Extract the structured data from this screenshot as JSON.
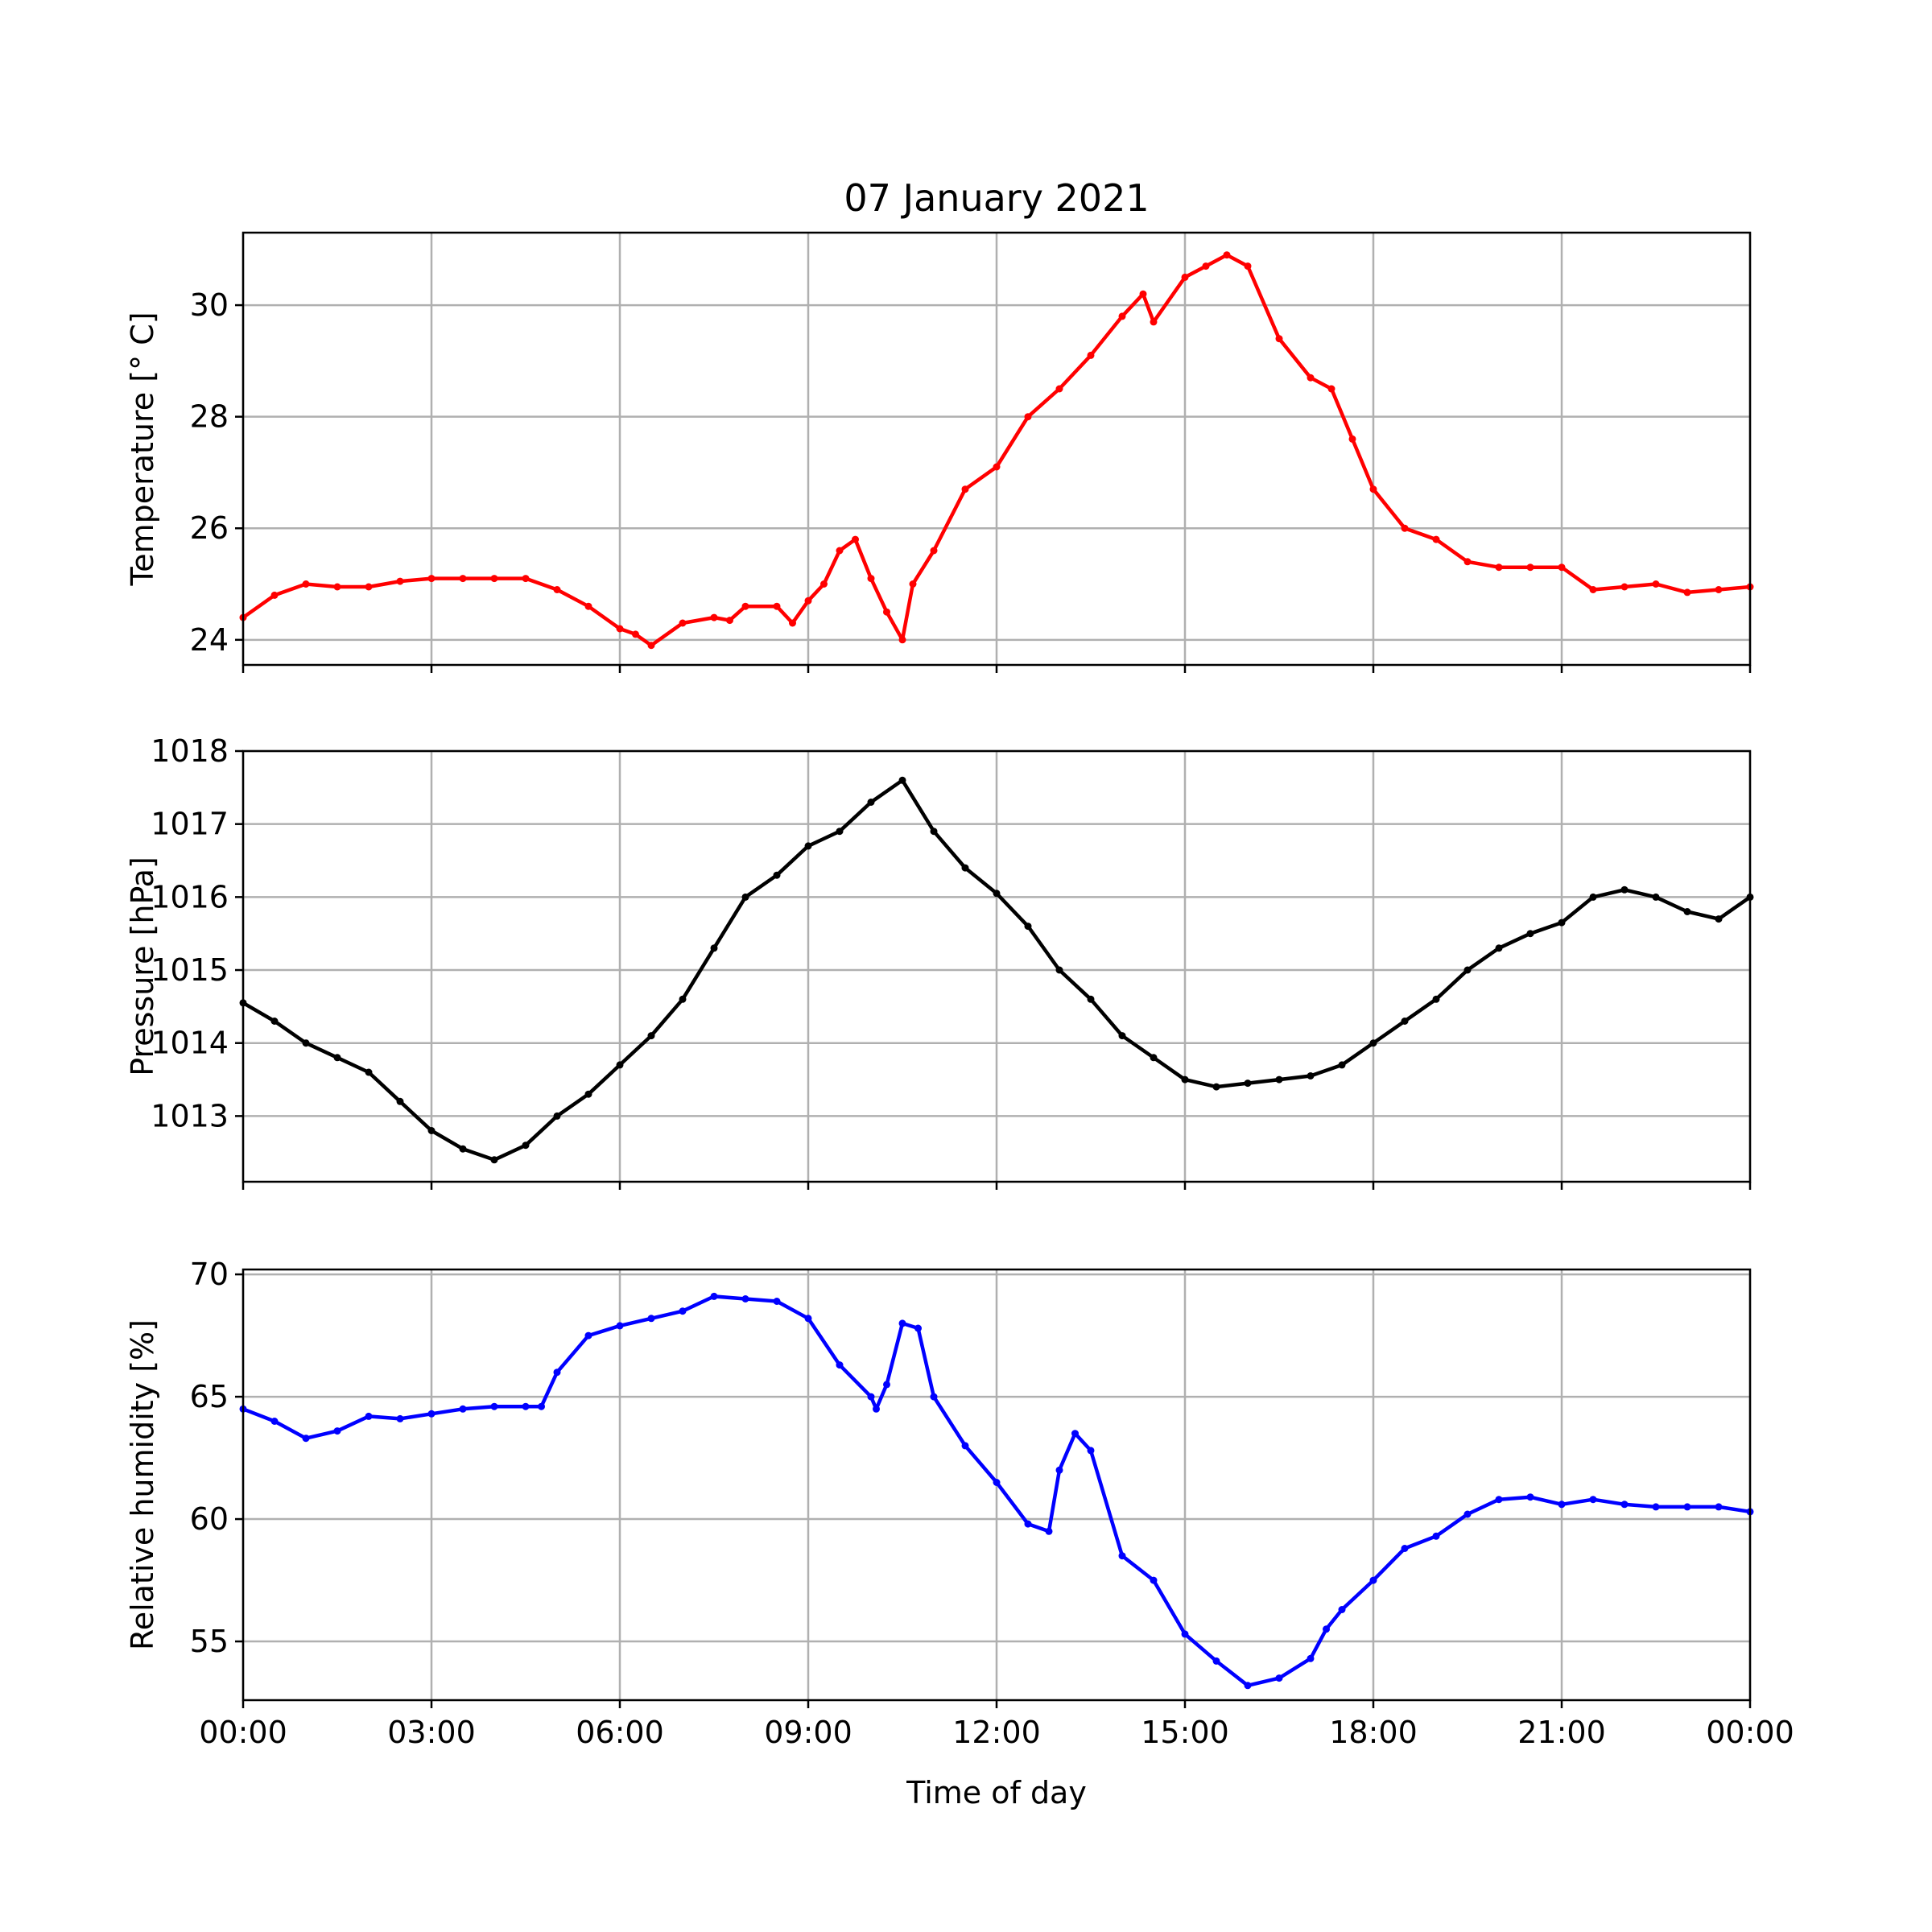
{
  "figure": {
    "title": "07 January 2021",
    "xlabel": "Time of day"
  },
  "chart_data": [
    {
      "type": "scatter",
      "ylabel": "Temperature [° C]",
      "color": "#ff0000",
      "xlim": [
        "00:00",
        "24:00"
      ],
      "x_ticks": [
        "00:00",
        "03:00",
        "06:00",
        "09:00",
        "12:00",
        "15:00",
        "18:00",
        "21:00",
        "00:00"
      ],
      "ylim": [
        23.55,
        31.3
      ],
      "y_ticks": [
        "24",
        "26",
        "28",
        "30"
      ],
      "grid": true,
      "x": [
        "00:00",
        "00:30",
        "01:00",
        "01:30",
        "02:00",
        "02:30",
        "03:00",
        "03:30",
        "04:00",
        "04:30",
        "05:00",
        "05:30",
        "06:00",
        "06:15",
        "06:30",
        "07:00",
        "07:30",
        "07:45",
        "08:00",
        "08:30",
        "08:45",
        "09:00",
        "09:15",
        "09:30",
        "09:45",
        "10:00",
        "10:15",
        "10:30",
        "10:40",
        "11:00",
        "11:30",
        "12:00",
        "12:30",
        "13:00",
        "13:30",
        "14:00",
        "14:20",
        "14:30",
        "15:00",
        "15:20",
        "15:40",
        "16:00",
        "16:30",
        "17:00",
        "17:20",
        "17:40",
        "18:00",
        "18:30",
        "19:00",
        "19:30",
        "20:00",
        "20:30",
        "21:00",
        "21:30",
        "22:00",
        "22:30",
        "23:00",
        "23:30",
        "24:00"
      ],
      "y": [
        24.4,
        24.8,
        25.0,
        24.95,
        24.95,
        25.05,
        25.1,
        25.1,
        25.1,
        25.1,
        24.9,
        24.6,
        24.2,
        24.1,
        23.9,
        24.3,
        24.4,
        24.35,
        24.6,
        24.6,
        24.3,
        24.7,
        25.0,
        25.6,
        25.8,
        25.1,
        24.5,
        24.0,
        25.0,
        25.6,
        26.7,
        27.1,
        28.0,
        28.5,
        29.1,
        29.8,
        30.2,
        29.7,
        30.5,
        30.7,
        30.9,
        30.7,
        29.4,
        28.7,
        28.5,
        27.6,
        26.7,
        26.0,
        25.8,
        25.4,
        25.3,
        25.3,
        25.3,
        24.9,
        24.95,
        25.0,
        24.85,
        24.9,
        24.95
      ]
    },
    {
      "type": "scatter",
      "ylabel": "Pressure [hPa]",
      "color": "#000000",
      "xlim": [
        "00:00",
        "24:00"
      ],
      "x_ticks": [
        "00:00",
        "03:00",
        "06:00",
        "09:00",
        "12:00",
        "15:00",
        "18:00",
        "21:00",
        "00:00"
      ],
      "ylim": [
        1012.1,
        1018.0
      ],
      "y_ticks": [
        "1013",
        "1014",
        "1015",
        "1016",
        "1017",
        "1018"
      ],
      "grid": true,
      "x": [
        "00:00",
        "00:30",
        "01:00",
        "01:30",
        "02:00",
        "02:30",
        "03:00",
        "03:30",
        "04:00",
        "04:30",
        "05:00",
        "05:30",
        "06:00",
        "06:30",
        "07:00",
        "07:30",
        "08:00",
        "08:30",
        "09:00",
        "09:30",
        "10:00",
        "10:30",
        "11:00",
        "11:30",
        "12:00",
        "12:30",
        "13:00",
        "13:30",
        "14:00",
        "14:30",
        "15:00",
        "15:30",
        "16:00",
        "16:30",
        "17:00",
        "17:30",
        "18:00",
        "18:30",
        "19:00",
        "19:30",
        "20:00",
        "20:30",
        "21:00",
        "21:30",
        "22:00",
        "22:30",
        "23:00",
        "23:30",
        "24:00"
      ],
      "y": [
        1014.55,
        1014.3,
        1014.0,
        1013.8,
        1013.6,
        1013.2,
        1012.8,
        1012.55,
        1012.4,
        1012.6,
        1013.0,
        1013.3,
        1013.7,
        1014.1,
        1014.6,
        1015.3,
        1016.0,
        1016.3,
        1016.7,
        1016.9,
        1017.3,
        1017.6,
        1016.9,
        1016.4,
        1016.05,
        1015.6,
        1015.0,
        1014.6,
        1014.1,
        1013.8,
        1013.5,
        1013.4,
        1013.45,
        1013.5,
        1013.55,
        1013.7,
        1014.0,
        1014.3,
        1014.6,
        1015.0,
        1015.3,
        1015.5,
        1015.65,
        1016.0,
        1016.1,
        1016.0,
        1015.8,
        1015.7,
        1016.0
      ]
    },
    {
      "type": "scatter",
      "ylabel": "Relative humidity [%]",
      "color": "#0000ff",
      "xlim": [
        "00:00",
        "24:00"
      ],
      "x_ticks": [
        "00:00",
        "03:00",
        "06:00",
        "09:00",
        "12:00",
        "15:00",
        "18:00",
        "21:00",
        "00:00"
      ],
      "x_tick_labels": [
        "00:00",
        "03:00",
        "06:00",
        "09:00",
        "12:00",
        "15:00",
        "18:00",
        "21:00",
        "00:00"
      ],
      "ylim": [
        52.6,
        70.2
      ],
      "y_ticks": [
        "55",
        "60",
        "65",
        "70"
      ],
      "grid": true,
      "x": [
        "00:00",
        "00:30",
        "01:00",
        "01:30",
        "02:00",
        "02:30",
        "03:00",
        "03:30",
        "04:00",
        "04:30",
        "04:45",
        "05:00",
        "05:30",
        "06:00",
        "06:30",
        "07:00",
        "07:30",
        "08:00",
        "08:30",
        "09:00",
        "09:30",
        "10:00",
        "10:05",
        "10:15",
        "10:30",
        "10:45",
        "11:00",
        "11:30",
        "12:00",
        "12:30",
        "12:50",
        "13:00",
        "13:15",
        "13:30",
        "14:00",
        "14:30",
        "15:00",
        "15:30",
        "16:00",
        "16:30",
        "17:00",
        "17:15",
        "17:30",
        "18:00",
        "18:30",
        "19:00",
        "19:30",
        "20:00",
        "20:30",
        "21:00",
        "21:30",
        "22:00",
        "22:30",
        "23:00",
        "23:30",
        "24:00"
      ],
      "y": [
        64.5,
        64.0,
        63.3,
        63.6,
        64.2,
        64.1,
        64.3,
        64.5,
        64.6,
        64.6,
        64.6,
        66.0,
        67.5,
        67.9,
        68.2,
        68.5,
        69.1,
        69.0,
        68.9,
        68.2,
        66.3,
        65.0,
        64.5,
        65.5,
        68.0,
        67.8,
        65.0,
        63.0,
        61.5,
        59.8,
        59.5,
        62.0,
        63.5,
        62.8,
        58.5,
        57.5,
        55.3,
        54.2,
        53.2,
        53.5,
        54.3,
        55.5,
        56.3,
        57.5,
        58.8,
        59.3,
        60.2,
        60.8,
        60.9,
        60.6,
        60.8,
        60.6,
        60.5,
        60.5,
        60.5,
        60.3
      ]
    }
  ]
}
